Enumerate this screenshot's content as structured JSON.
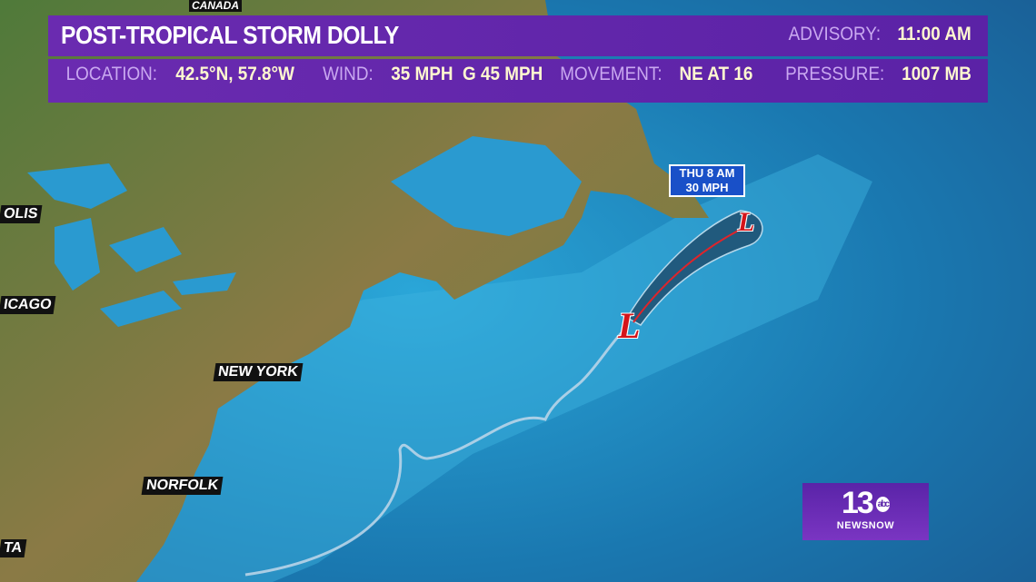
{
  "header": {
    "title": "POST-TROPICAL STORM DOLLY",
    "advisory_label": "ADVISORY:",
    "advisory_value": "11:00 AM"
  },
  "details": {
    "location_label": "LOCATION:",
    "location_value": "42.5°N, 57.8°W",
    "wind_label": "WIND:",
    "wind_value": "35 MPH  G 45 MPH",
    "movement_label": "MOVEMENT:",
    "movement_value": "NE AT 16",
    "pressure_label": "PRESSURE:",
    "pressure_value": "1007 MB"
  },
  "map": {
    "labels": {
      "canada": "CANADA",
      "olis": "OLIS",
      "chicago": "ICAGO",
      "new_york": "NEW YORK",
      "norfolk": "NORFOLK",
      "ta": "TA"
    },
    "forecast": {
      "time": "THU 8 AM",
      "wind": "30 MPH"
    },
    "low_symbol": "L",
    "colors": {
      "ocean": "#1a7fb8",
      "land": "#6b7a3a",
      "banner": "#6a2bb0",
      "low": "#d4141a"
    }
  },
  "logo": {
    "number": "13",
    "network": "abc",
    "brand": "NEWSNOW"
  }
}
